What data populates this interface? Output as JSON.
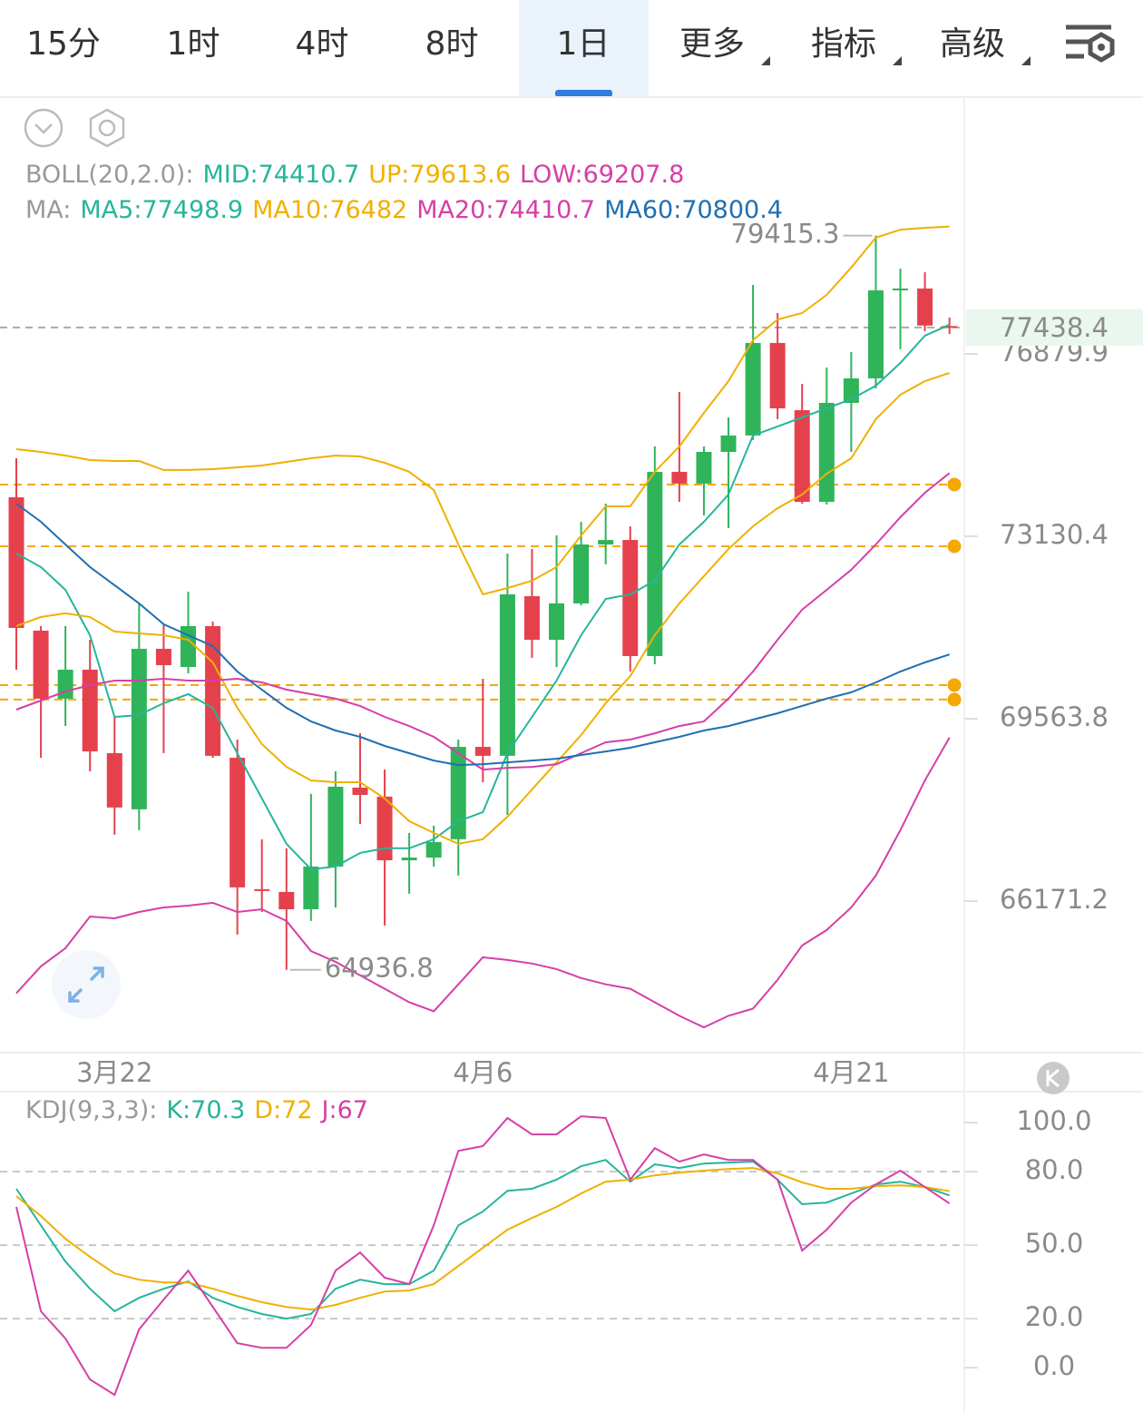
{
  "tabs": [
    {
      "label": "15分"
    },
    {
      "label": "1时"
    },
    {
      "label": "4时"
    },
    {
      "label": "8时"
    },
    {
      "label": "1日"
    },
    {
      "label": "更多",
      "menu": true
    },
    {
      "label": "指标",
      "menu": true
    },
    {
      "label": "高级",
      "menu": true
    }
  ],
  "active_tab": "1日",
  "chart_data": [
    {
      "type": "candlestick",
      "log_scale": true,
      "ylim": [
        63479,
        82426
      ],
      "yticks": [
        76879.9,
        73130.4,
        69563.8,
        66171.2
      ],
      "up_color": "#2fb45a",
      "down_color": "#e5414d",
      "categories": [
        null,
        null,
        null,
        null,
        "3月22",
        null,
        null,
        null,
        null,
        null,
        null,
        null,
        null,
        null,
        null,
        null,
        null,
        null,
        null,
        "4月6",
        null,
        null,
        null,
        null,
        null,
        null,
        null,
        null,
        null,
        null,
        null,
        null,
        null,
        null,
        "4月21",
        null,
        null,
        null,
        null
      ],
      "open": [
        73917,
        71264,
        69947,
        70505,
        68911,
        67857,
        70910,
        70558,
        71353,
        68823,
        66388,
        66338,
        66023,
        66801,
        68263,
        68094,
        66916,
        66966,
        67303,
        69029,
        68860,
        71940,
        71086,
        71798,
        72967,
        73057,
        70769,
        74435,
        74195,
        74842,
        75180,
        77111,
        75704,
        73825,
        75855,
        76366,
        78232,
        78271,
        77470
      ],
      "high": [
        74712,
        71353,
        71353,
        71086,
        69599,
        71798,
        71389,
        72029,
        71442,
        69167,
        67303,
        67136,
        68145,
        68567,
        69287,
        68601,
        67420,
        67553,
        69167,
        70330,
        72787,
        72877,
        73148,
        73423,
        73789,
        73331,
        74955,
        76081,
        74955,
        75554,
        78348,
        77746,
        76252,
        76594,
        76918,
        79415.3,
        78698,
        78620,
        77650
      ],
      "low": [
        70505,
        68823,
        69425,
        68567,
        67386,
        67470,
        68911,
        70435,
        68823,
        65567,
        65975,
        64936.8,
        65812,
        66056,
        67586,
        65730,
        66306,
        66801,
        66636,
        68364,
        67754,
        70734,
        70558,
        71762,
        72571,
        70471,
        70611,
        73825,
        73551,
        73295,
        75086,
        75517,
        73789,
        73771,
        74842,
        76157,
        76979,
        77359,
        77300
      ],
      "close": [
        71317,
        69947,
        70505,
        68943,
        67891,
        70910,
        70593,
        71353,
        68860,
        66421,
        66355,
        66023,
        66801,
        68280,
        68126,
        66916,
        66966,
        67252,
        69029,
        68860,
        71976,
        71086,
        71798,
        72967,
        73057,
        70769,
        74435,
        74195,
        74842,
        75180,
        77111,
        75741,
        73825,
        75855,
        76366,
        78232,
        78271,
        77480,
        77438.4
      ],
      "price_lines": [
        74176,
        72931,
        70208,
        69930
      ],
      "price_line_color": "#f5a800",
      "boll": {
        "label": "BOLL(20,2.0):",
        "mid": {
          "name": "MID:",
          "value": 74410.7,
          "color": "#26b59b"
        },
        "series": [
          {
            "name": "UP:",
            "color": "#f0b000",
            "values": [
              74899,
              74842,
              74768,
              74675,
              74657,
              74657,
              74472,
              74472,
              74490,
              74527,
              74564,
              74638,
              74712,
              74768,
              74749,
              74620,
              74435,
              74065,
              72967,
              71976,
              72101,
              72247,
              72517,
              73148,
              73733,
              73733,
              74435,
              74955,
              75648,
              76309,
              77169,
              77611,
              77746,
              78135,
              78722,
              79369,
              79544,
              79583,
              79613.6
            ]
          },
          {
            "name": "LOW:",
            "color": "#d63fa6",
            "values": [
              64520,
              64998,
              65322,
              65893,
              65860,
              65975,
              66056,
              66089,
              66140,
              65975,
              66023,
              65812,
              65273,
              65080,
              64837,
              64600,
              64361,
              64203,
              64679,
              65160,
              65112,
              65048,
              64950,
              64790,
              64679,
              64600,
              64361,
              64124,
              63919,
              64124,
              64250,
              64758,
              65371,
              65649,
              66056,
              66636,
              67470,
              68398,
              69207.8
            ]
          }
        ]
      },
      "ma": {
        "label": "MA:",
        "series": [
          {
            "name": "MA5:",
            "color": "#26b59b",
            "values": [
              72787,
              72517,
              72065,
              71174,
              69599,
              69634,
              69860,
              70034,
              69773,
              68909,
              68060,
              67219,
              66751,
              66801,
              67052,
              67136,
              67136,
              67303,
              67637,
              67805,
              68909,
              69599,
              70295,
              71174,
              71887,
              71976,
              72247,
              72967,
              73423,
              73973,
              75180,
              75367,
              75554,
              75741,
              75931,
              76214,
              76689,
              77265,
              77498.9
            ]
          },
          {
            "name": "MA10:",
            "color": "#f0b000",
            "values": [
              71353,
              71531,
              71602,
              71531,
              71245,
              71210,
              71174,
              71086,
              70646,
              69773,
              69081,
              68652,
              68398,
              68364,
              68364,
              68060,
              67637,
              67420,
              67219,
              67303,
              67720,
              68229,
              68737,
              69253,
              69860,
              70383,
              71174,
              71798,
              72337,
              72877,
              73331,
              73697,
              73973,
              74398,
              74712,
              75517,
              76024,
              76309,
              76482.0
            ]
          },
          {
            "name": "MA20:",
            "color": "#d63fa6",
            "values": [
              69738,
              69912,
              70086,
              70208,
              70295,
              70295,
              70330,
              70295,
              70295,
              70330,
              70260,
              70121,
              70034,
              69947,
              69808,
              69599,
              69425,
              69219,
              68909,
              68601,
              68635,
              68652,
              68703,
              68909,
              69116,
              69167,
              69287,
              69425,
              69512,
              69947,
              70470,
              71086,
              71673,
              72065,
              72463,
              72967,
              73514,
              74010,
              74410.7
            ]
          },
          {
            "name": "MA60:",
            "color": "#1f6fb2",
            "values": [
              73789,
              73423,
              72967,
              72517,
              72156,
              71798,
              71389,
              71174,
              70963,
              70470,
              70121,
              69773,
              69512,
              69339,
              69219,
              69047,
              68909,
              68771,
              68686,
              68703,
              68737,
              68771,
              68806,
              68875,
              68943,
              69013,
              69116,
              69219,
              69339,
              69425,
              69547,
              69669,
              69808,
              69947,
              70069,
              70260,
              70470,
              70646,
              70800.4
            ]
          }
        ]
      }
    },
    {
      "type": "line",
      "title": "KDJ(9,3,3):",
      "ylim": [
        -18.1,
        111.9
      ],
      "yticks": [
        {
          "value": 100,
          "label": "100.0"
        },
        {
          "value": 80,
          "label": "80.0"
        },
        {
          "value": 50,
          "label": "50.0"
        },
        {
          "value": 20,
          "label": "20.0"
        },
        {
          "value": 0,
          "label": "0.0"
        }
      ],
      "series": [
        {
          "name": "K:",
          "color": "#26b59b",
          "values": [
            73.0,
            58.1,
            43.3,
            32.2,
            23.0,
            28.5,
            32.2,
            35.2,
            28.5,
            24.8,
            21.9,
            20.0,
            21.9,
            32.2,
            35.9,
            34.1,
            34.1,
            39.6,
            58.1,
            63.7,
            72.2,
            73.0,
            76.7,
            82.2,
            84.8,
            75.9,
            83.0,
            81.5,
            83.3,
            83.7,
            84.1,
            76.7,
            66.7,
            67.4,
            71.1,
            74.8,
            75.9,
            73.7,
            70.3
          ]
        },
        {
          "name": "D:",
          "color": "#f0b000",
          "values": [
            70.0,
            61.9,
            52.6,
            45.2,
            38.5,
            35.9,
            34.8,
            34.8,
            32.2,
            29.3,
            26.7,
            24.8,
            23.7,
            25.6,
            28.5,
            31.1,
            31.5,
            34.1,
            41.5,
            48.9,
            56.3,
            61.1,
            65.6,
            71.1,
            75.9,
            76.7,
            78.5,
            79.6,
            80.4,
            81.1,
            81.5,
            79.3,
            75.6,
            73.0,
            73.0,
            74.1,
            74.4,
            73.7,
            72.0
          ]
        },
        {
          "name": "J:",
          "color": "#d63fa6",
          "values": [
            65.6,
            23.0,
            11.9,
            -4.8,
            -11.1,
            15.6,
            27.8,
            39.6,
            24.8,
            10.0,
            8.1,
            8.1,
            17.4,
            39.6,
            47.0,
            36.7,
            34.1,
            58.1,
            88.5,
            90.4,
            101.9,
            95.2,
            95.2,
            102.6,
            101.9,
            76.7,
            89.6,
            84.1,
            87.0,
            84.8,
            84.8,
            76.7,
            47.8,
            56.3,
            67.4,
            74.8,
            80.4,
            73.7,
            67.0
          ]
        }
      ]
    }
  ]
}
